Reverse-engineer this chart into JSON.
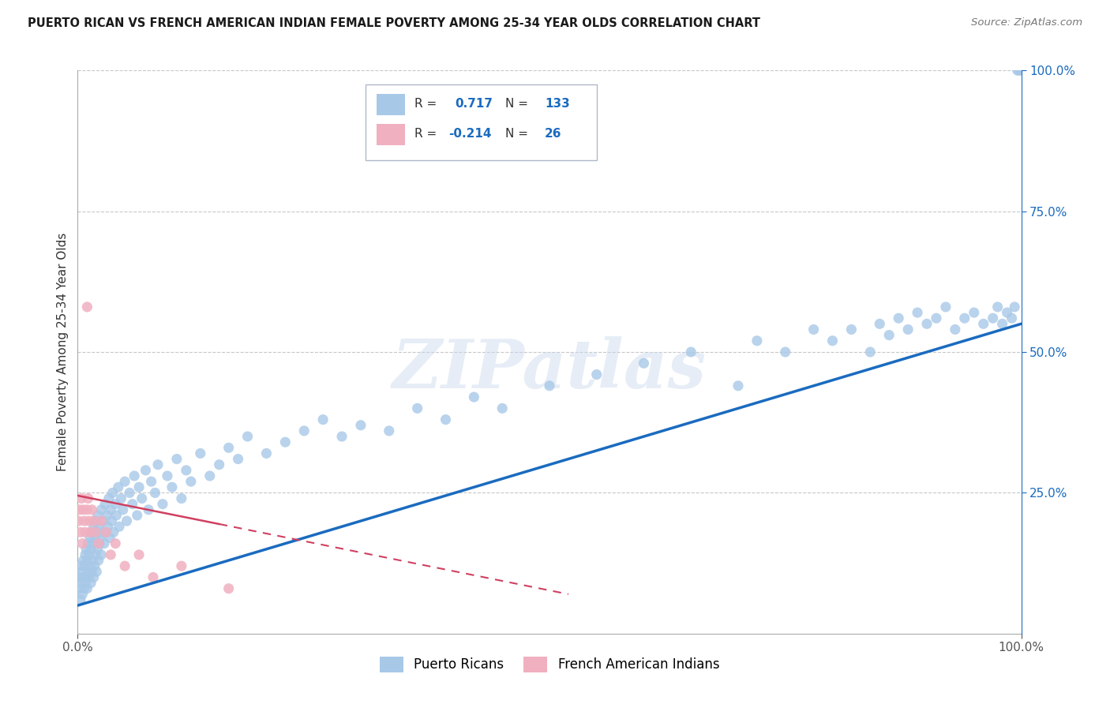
{
  "title": "PUERTO RICAN VS FRENCH AMERICAN INDIAN FEMALE POVERTY AMONG 25-34 YEAR OLDS CORRELATION CHART",
  "source": "Source: ZipAtlas.com",
  "ylabel": "Female Poverty Among 25-34 Year Olds",
  "background_color": "#ffffff",
  "grid_color": "#c8c8c8",
  "watermark": "ZIPatlas",
  "blue_R": 0.717,
  "blue_N": 133,
  "pink_R": -0.214,
  "pink_N": 26,
  "blue_color": "#a8c8e8",
  "pink_color": "#f0b0c0",
  "blue_line_color": "#1a6bbf",
  "pink_line_color": "#d04060",
  "blue_scatter_x": [
    0.001,
    0.002,
    0.003,
    0.003,
    0.004,
    0.005,
    0.005,
    0.006,
    0.006,
    0.007,
    0.007,
    0.008,
    0.008,
    0.009,
    0.009,
    0.01,
    0.01,
    0.011,
    0.011,
    0.012,
    0.012,
    0.013,
    0.013,
    0.014,
    0.014,
    0.015,
    0.015,
    0.016,
    0.016,
    0.017,
    0.017,
    0.018,
    0.018,
    0.019,
    0.019,
    0.02,
    0.02,
    0.021,
    0.021,
    0.022,
    0.022,
    0.023,
    0.024,
    0.025,
    0.025,
    0.026,
    0.027,
    0.028,
    0.029,
    0.03,
    0.031,
    0.032,
    0.033,
    0.034,
    0.035,
    0.036,
    0.037,
    0.038,
    0.04,
    0.041,
    0.043,
    0.044,
    0.046,
    0.048,
    0.05,
    0.052,
    0.055,
    0.058,
    0.06,
    0.063,
    0.065,
    0.068,
    0.072,
    0.075,
    0.078,
    0.082,
    0.085,
    0.09,
    0.095,
    0.1,
    0.105,
    0.11,
    0.115,
    0.12,
    0.13,
    0.14,
    0.15,
    0.16,
    0.17,
    0.18,
    0.2,
    0.22,
    0.24,
    0.26,
    0.28,
    0.3,
    0.33,
    0.36,
    0.39,
    0.42,
    0.45,
    0.5,
    0.55,
    0.6,
    0.65,
    0.7,
    0.72,
    0.75,
    0.78,
    0.8,
    0.82,
    0.84,
    0.85,
    0.86,
    0.87,
    0.88,
    0.89,
    0.9,
    0.91,
    0.92,
    0.93,
    0.94,
    0.95,
    0.96,
    0.97,
    0.975,
    0.98,
    0.985,
    0.99,
    0.993,
    0.996,
    0.998,
    1.0
  ],
  "blue_scatter_y": [
    0.08,
    0.1,
    0.06,
    0.12,
    0.09,
    0.07,
    0.11,
    0.1,
    0.13,
    0.08,
    0.12,
    0.09,
    0.14,
    0.1,
    0.15,
    0.08,
    0.13,
    0.11,
    0.16,
    0.1,
    0.14,
    0.12,
    0.17,
    0.09,
    0.15,
    0.11,
    0.18,
    0.13,
    0.16,
    0.1,
    0.19,
    0.12,
    0.17,
    0.14,
    0.2,
    0.11,
    0.18,
    0.15,
    0.21,
    0.13,
    0.19,
    0.16,
    0.17,
    0.14,
    0.22,
    0.18,
    0.2,
    0.16,
    0.23,
    0.18,
    0.21,
    0.19,
    0.24,
    0.17,
    0.22,
    0.2,
    0.25,
    0.18,
    0.23,
    0.21,
    0.26,
    0.19,
    0.24,
    0.22,
    0.27,
    0.2,
    0.25,
    0.23,
    0.28,
    0.21,
    0.26,
    0.24,
    0.29,
    0.22,
    0.27,
    0.25,
    0.3,
    0.23,
    0.28,
    0.26,
    0.31,
    0.24,
    0.29,
    0.27,
    0.32,
    0.28,
    0.3,
    0.33,
    0.31,
    0.35,
    0.32,
    0.34,
    0.36,
    0.38,
    0.35,
    0.37,
    0.36,
    0.4,
    0.38,
    0.42,
    0.4,
    0.44,
    0.46,
    0.48,
    0.5,
    0.44,
    0.52,
    0.5,
    0.54,
    0.52,
    0.54,
    0.5,
    0.55,
    0.53,
    0.56,
    0.54,
    0.57,
    0.55,
    0.56,
    0.58,
    0.54,
    0.56,
    0.57,
    0.55,
    0.56,
    0.58,
    0.55,
    0.57,
    0.56,
    0.58,
    1.0,
    1.0,
    1.0
  ],
  "pink_scatter_x": [
    0.001,
    0.002,
    0.003,
    0.004,
    0.005,
    0.006,
    0.007,
    0.008,
    0.01,
    0.011,
    0.012,
    0.013,
    0.015,
    0.017,
    0.019,
    0.022,
    0.025,
    0.03,
    0.035,
    0.04,
    0.05,
    0.065,
    0.08,
    0.11,
    0.16,
    0.01
  ],
  "pink_scatter_y": [
    0.2,
    0.22,
    0.18,
    0.24,
    0.16,
    0.22,
    0.2,
    0.18,
    0.22,
    0.24,
    0.2,
    0.18,
    0.22,
    0.2,
    0.18,
    0.16,
    0.2,
    0.18,
    0.14,
    0.16,
    0.12,
    0.14,
    0.1,
    0.12,
    0.08,
    0.58
  ]
}
